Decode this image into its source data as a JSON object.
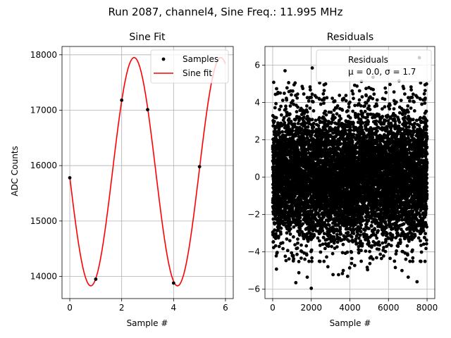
{
  "figure": {
    "suptitle": "Run 2087, channel4, Sine Freq.: 11.995 MHz"
  },
  "chart_data": [
    {
      "type": "line",
      "title": "Sine Fit",
      "xlabel": "Sample #",
      "ylabel": "ADC Counts",
      "xlim": [
        -0.3,
        6.3
      ],
      "ylim": [
        13600,
        18150
      ],
      "xticks": [
        0,
        2,
        4,
        6
      ],
      "yticks": [
        14000,
        15000,
        16000,
        17000,
        18000
      ],
      "grid": true,
      "legend": {
        "position": "upper-right",
        "entries": [
          "Samples",
          "Sine fit"
        ]
      },
      "series": [
        {
          "name": "Samples",
          "kind": "scatter",
          "color": "#000000",
          "x": [
            0,
            1,
            2,
            3,
            4,
            5
          ],
          "y": [
            15780,
            13950,
            17180,
            17010,
            13880,
            15980
          ]
        },
        {
          "name": "Sine fit",
          "kind": "line",
          "color": "#ff0000",
          "model": {
            "offset": 15890,
            "amplitude": 2060,
            "period": 3.34,
            "peak_x": 2.48
          },
          "x_range": [
            0,
            6
          ]
        }
      ]
    },
    {
      "type": "scatter",
      "title": "Residuals",
      "xlabel": "Sample #",
      "xlim": [
        -400,
        8400
      ],
      "ylim": [
        -6.5,
        7.0
      ],
      "xticks": [
        0,
        2000,
        4000,
        6000,
        8000
      ],
      "yticks": [
        -6,
        -4,
        -2,
        0,
        2,
        4,
        6
      ],
      "grid": true,
      "legend": {
        "position": "upper-right",
        "label_line1": "Residuals",
        "label_line2": "μ = 0.0, σ = 1.7"
      },
      "series": [
        {
          "name": "Residuals",
          "color": "#000000",
          "n_points": 8000,
          "x_range": [
            0,
            8000
          ],
          "mean": 0.0,
          "sigma": 1.7,
          "outliers": [
            {
              "x": 2050,
              "y": 5.85
            },
            {
              "x": 2000,
              "y": -5.95
            },
            {
              "x": 7600,
              "y": 6.4
            },
            {
              "x": 640,
              "y": 5.7
            },
            {
              "x": 1200,
              "y": -5.65
            },
            {
              "x": 5200,
              "y": 5.35
            },
            {
              "x": 7480,
              "y": -5.6
            },
            {
              "x": 6700,
              "y": -5.0
            }
          ]
        }
      ]
    }
  ]
}
